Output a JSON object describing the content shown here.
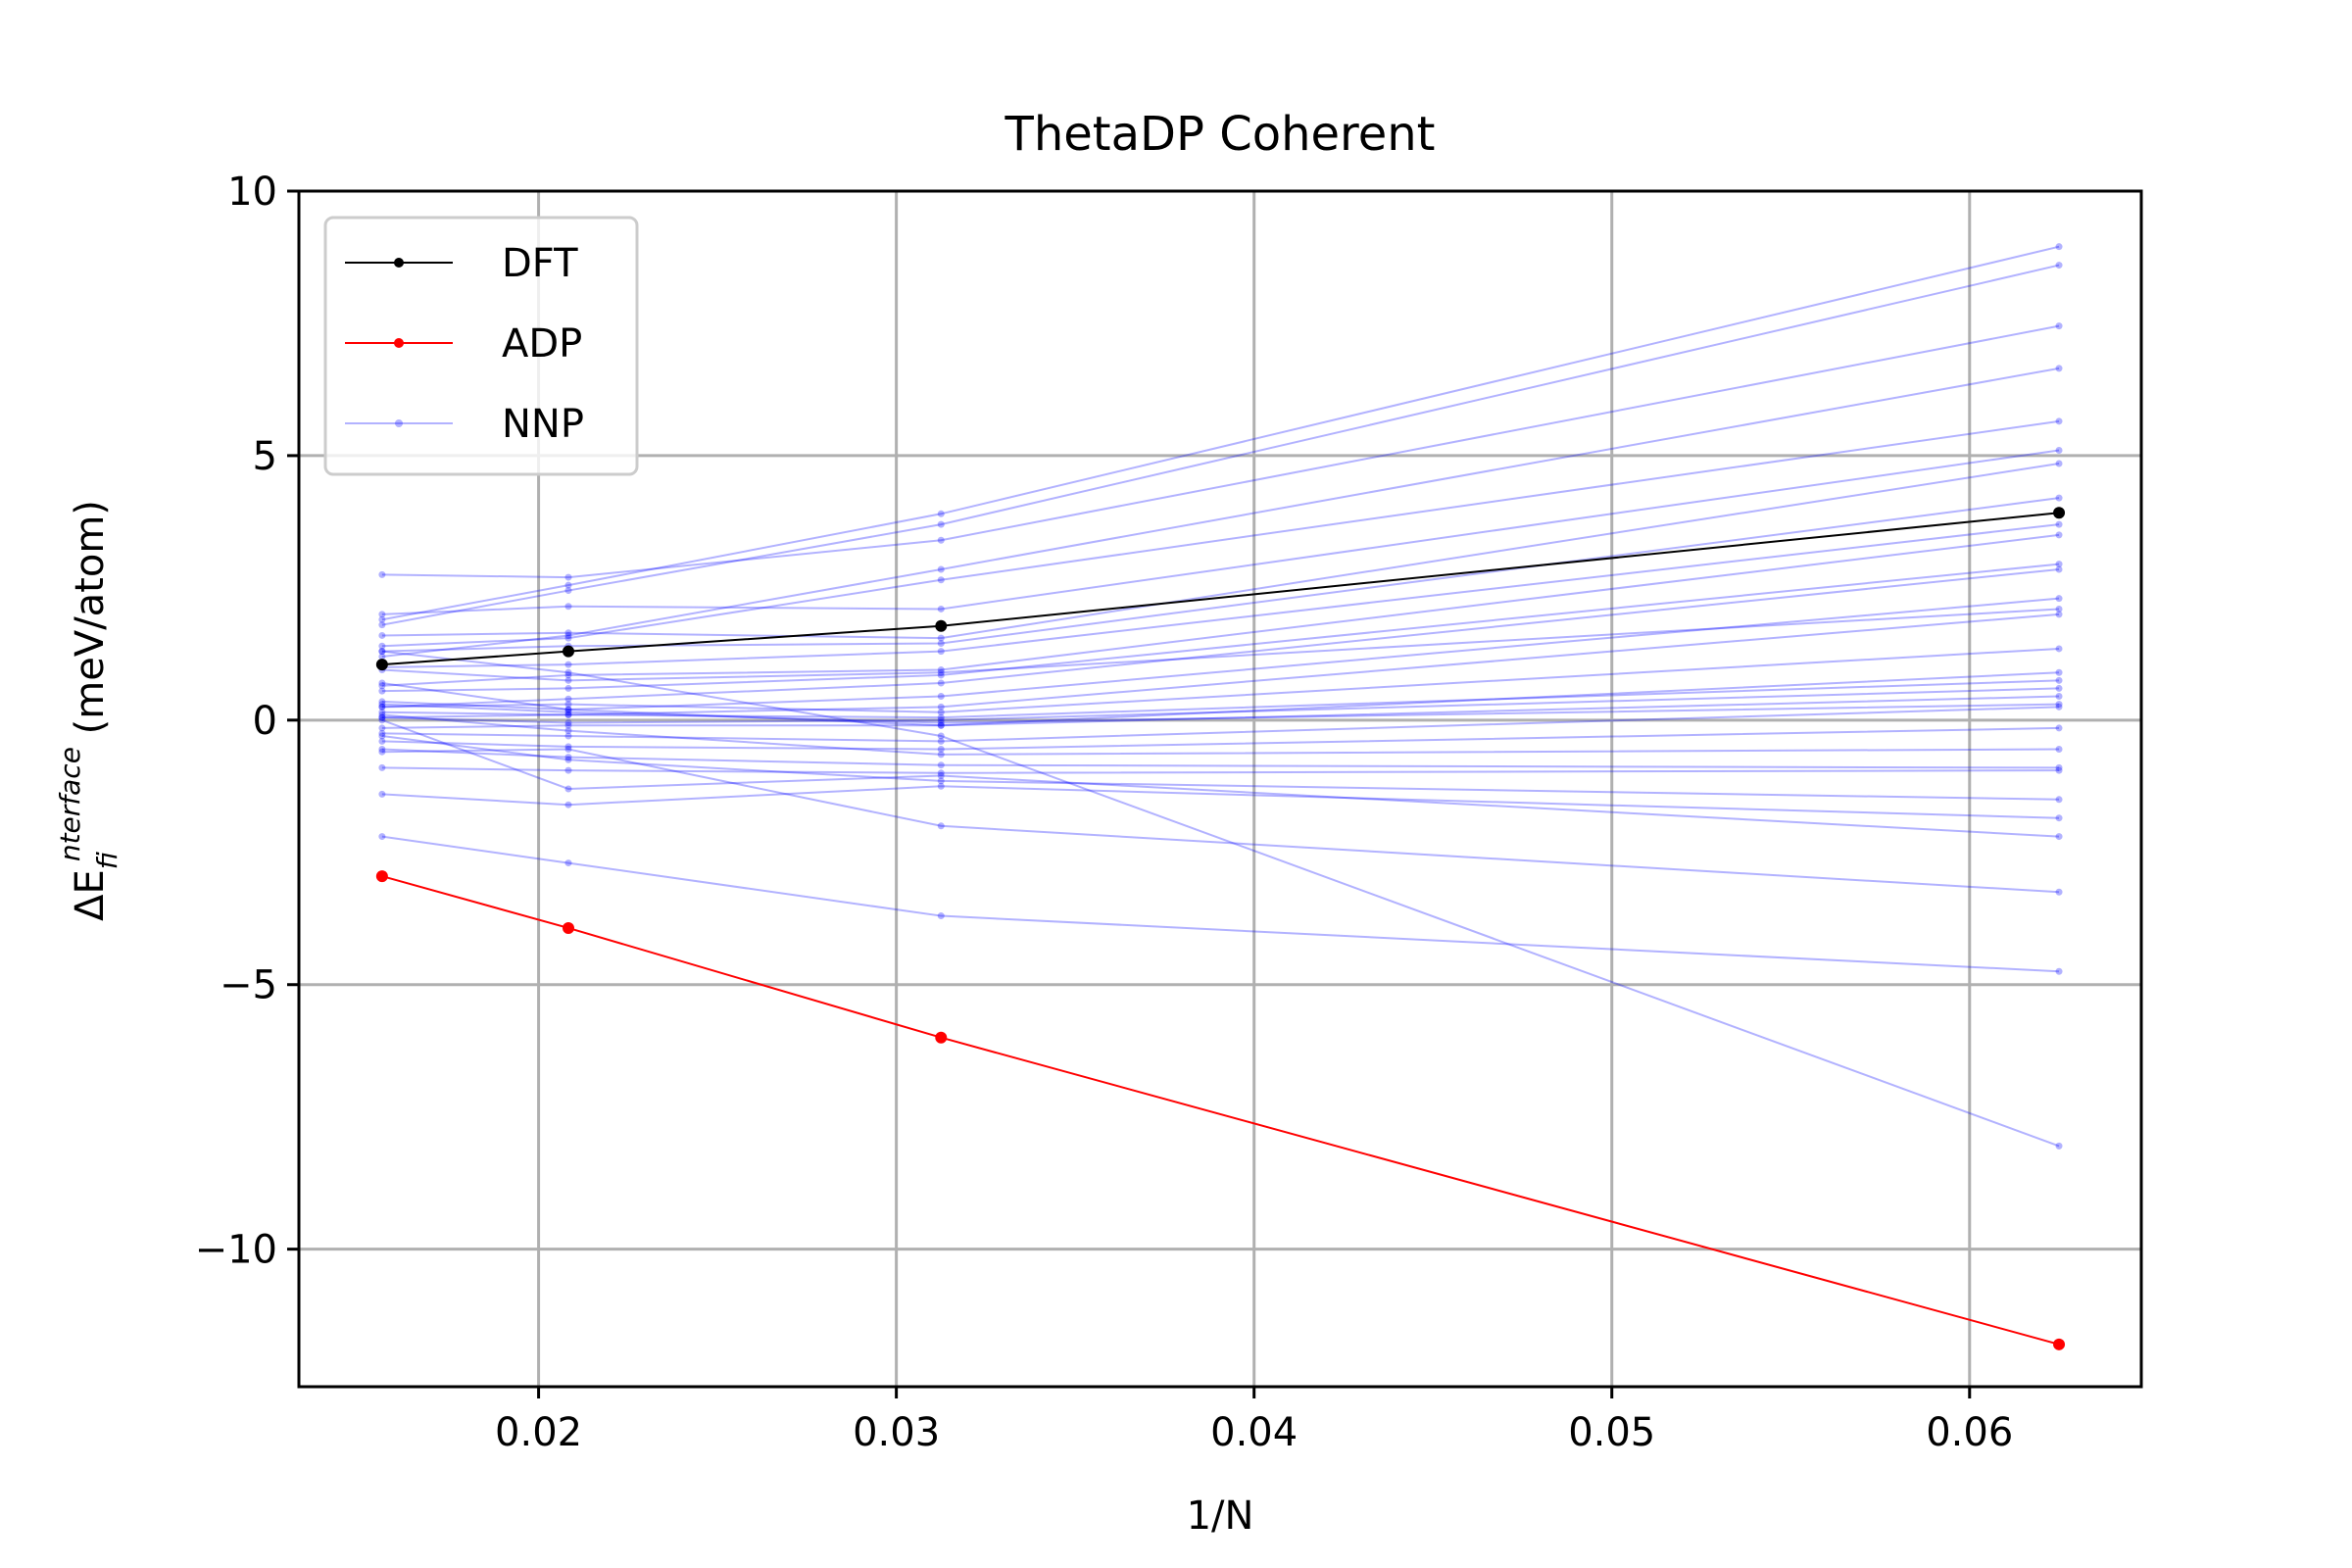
{
  "chart_data": {
    "type": "line",
    "title": "ThetaDP Coherent",
    "xlabel": "1/N",
    "ylabel": {
      "prefix": "ΔE",
      "superscript": "interface",
      "subscript": "f",
      "suffix": " (meV/atom)"
    },
    "x": [
      0.015625,
      0.020833,
      0.03125,
      0.0625
    ],
    "xlim": [
      0.0133,
      0.0648
    ],
    "ylim": [
      -12.6,
      10
    ],
    "xticks": [
      0.02,
      0.03,
      0.04,
      0.05,
      0.06
    ],
    "xtick_labels": [
      "0.02",
      "0.03",
      "0.04",
      "0.05",
      "0.06"
    ],
    "yticks": [
      -10,
      -5,
      0,
      5,
      10
    ],
    "ytick_labels": [
      "−10",
      "−5",
      "0",
      "5",
      "10"
    ],
    "grid": true,
    "legend_position": "top-left",
    "series": [
      {
        "name": "DFT",
        "color": "#000000",
        "values": [
          1.05,
          1.3,
          1.78,
          3.92
        ]
      },
      {
        "name": "ADP",
        "color": "#ff0000",
        "values": [
          -2.95,
          -3.93,
          -6.0,
          -11.8
        ]
      },
      {
        "name": "NNP",
        "color": "#0000ff",
        "opacity": 0.3,
        "values_list": [
          [
            1.9,
            2.55,
            3.9,
            8.95
          ],
          [
            1.8,
            2.45,
            3.7,
            8.6
          ],
          [
            2.75,
            2.7,
            3.4,
            7.45
          ],
          [
            1.2,
            1.6,
            2.85,
            6.65
          ],
          [
            1.4,
            1.55,
            2.65,
            5.65
          ],
          [
            2.0,
            2.15,
            2.1,
            5.1
          ],
          [
            1.6,
            1.65,
            1.55,
            4.85
          ],
          [
            1.3,
            1.4,
            1.45,
            4.2
          ],
          [
            1.0,
            1.05,
            1.3,
            3.7
          ],
          [
            0.65,
            0.85,
            0.95,
            3.5
          ],
          [
            0.55,
            0.6,
            0.85,
            2.95
          ],
          [
            0.25,
            0.4,
            0.7,
            2.85
          ],
          [
            0.35,
            0.2,
            0.45,
            2.3
          ],
          [
            0.95,
            0.75,
            0.9,
            2.1
          ],
          [
            0.05,
            0.1,
            0.25,
            2.0
          ],
          [
            0.25,
            0.3,
            0.15,
            1.35
          ],
          [
            0.7,
            0.2,
            -0.1,
            0.9
          ],
          [
            0.15,
            0.1,
            0.05,
            0.75
          ],
          [
            0.05,
            -0.05,
            0.0,
            0.6
          ],
          [
            -0.15,
            -0.1,
            -0.1,
            0.45
          ],
          [
            0.3,
            0.15,
            -0.05,
            0.3
          ],
          [
            -0.25,
            -0.3,
            -0.4,
            0.25
          ],
          [
            -0.4,
            -0.5,
            -0.55,
            -0.15
          ],
          [
            0.1,
            -0.2,
            -0.65,
            -0.55
          ],
          [
            -0.55,
            -0.7,
            -0.85,
            -0.9
          ],
          [
            -0.9,
            -0.95,
            -1.0,
            -0.95
          ],
          [
            -0.3,
            -0.75,
            -1.15,
            -1.5
          ],
          [
            -1.4,
            -1.6,
            -1.25,
            -1.85
          ],
          [
            0.0,
            -1.3,
            -1.05,
            -2.2
          ],
          [
            -0.6,
            -0.55,
            -2.0,
            -3.25
          ],
          [
            -2.2,
            -2.7,
            -3.7,
            -4.75
          ],
          [
            1.3,
            0.9,
            -0.3,
            -8.05
          ]
        ]
      }
    ]
  }
}
